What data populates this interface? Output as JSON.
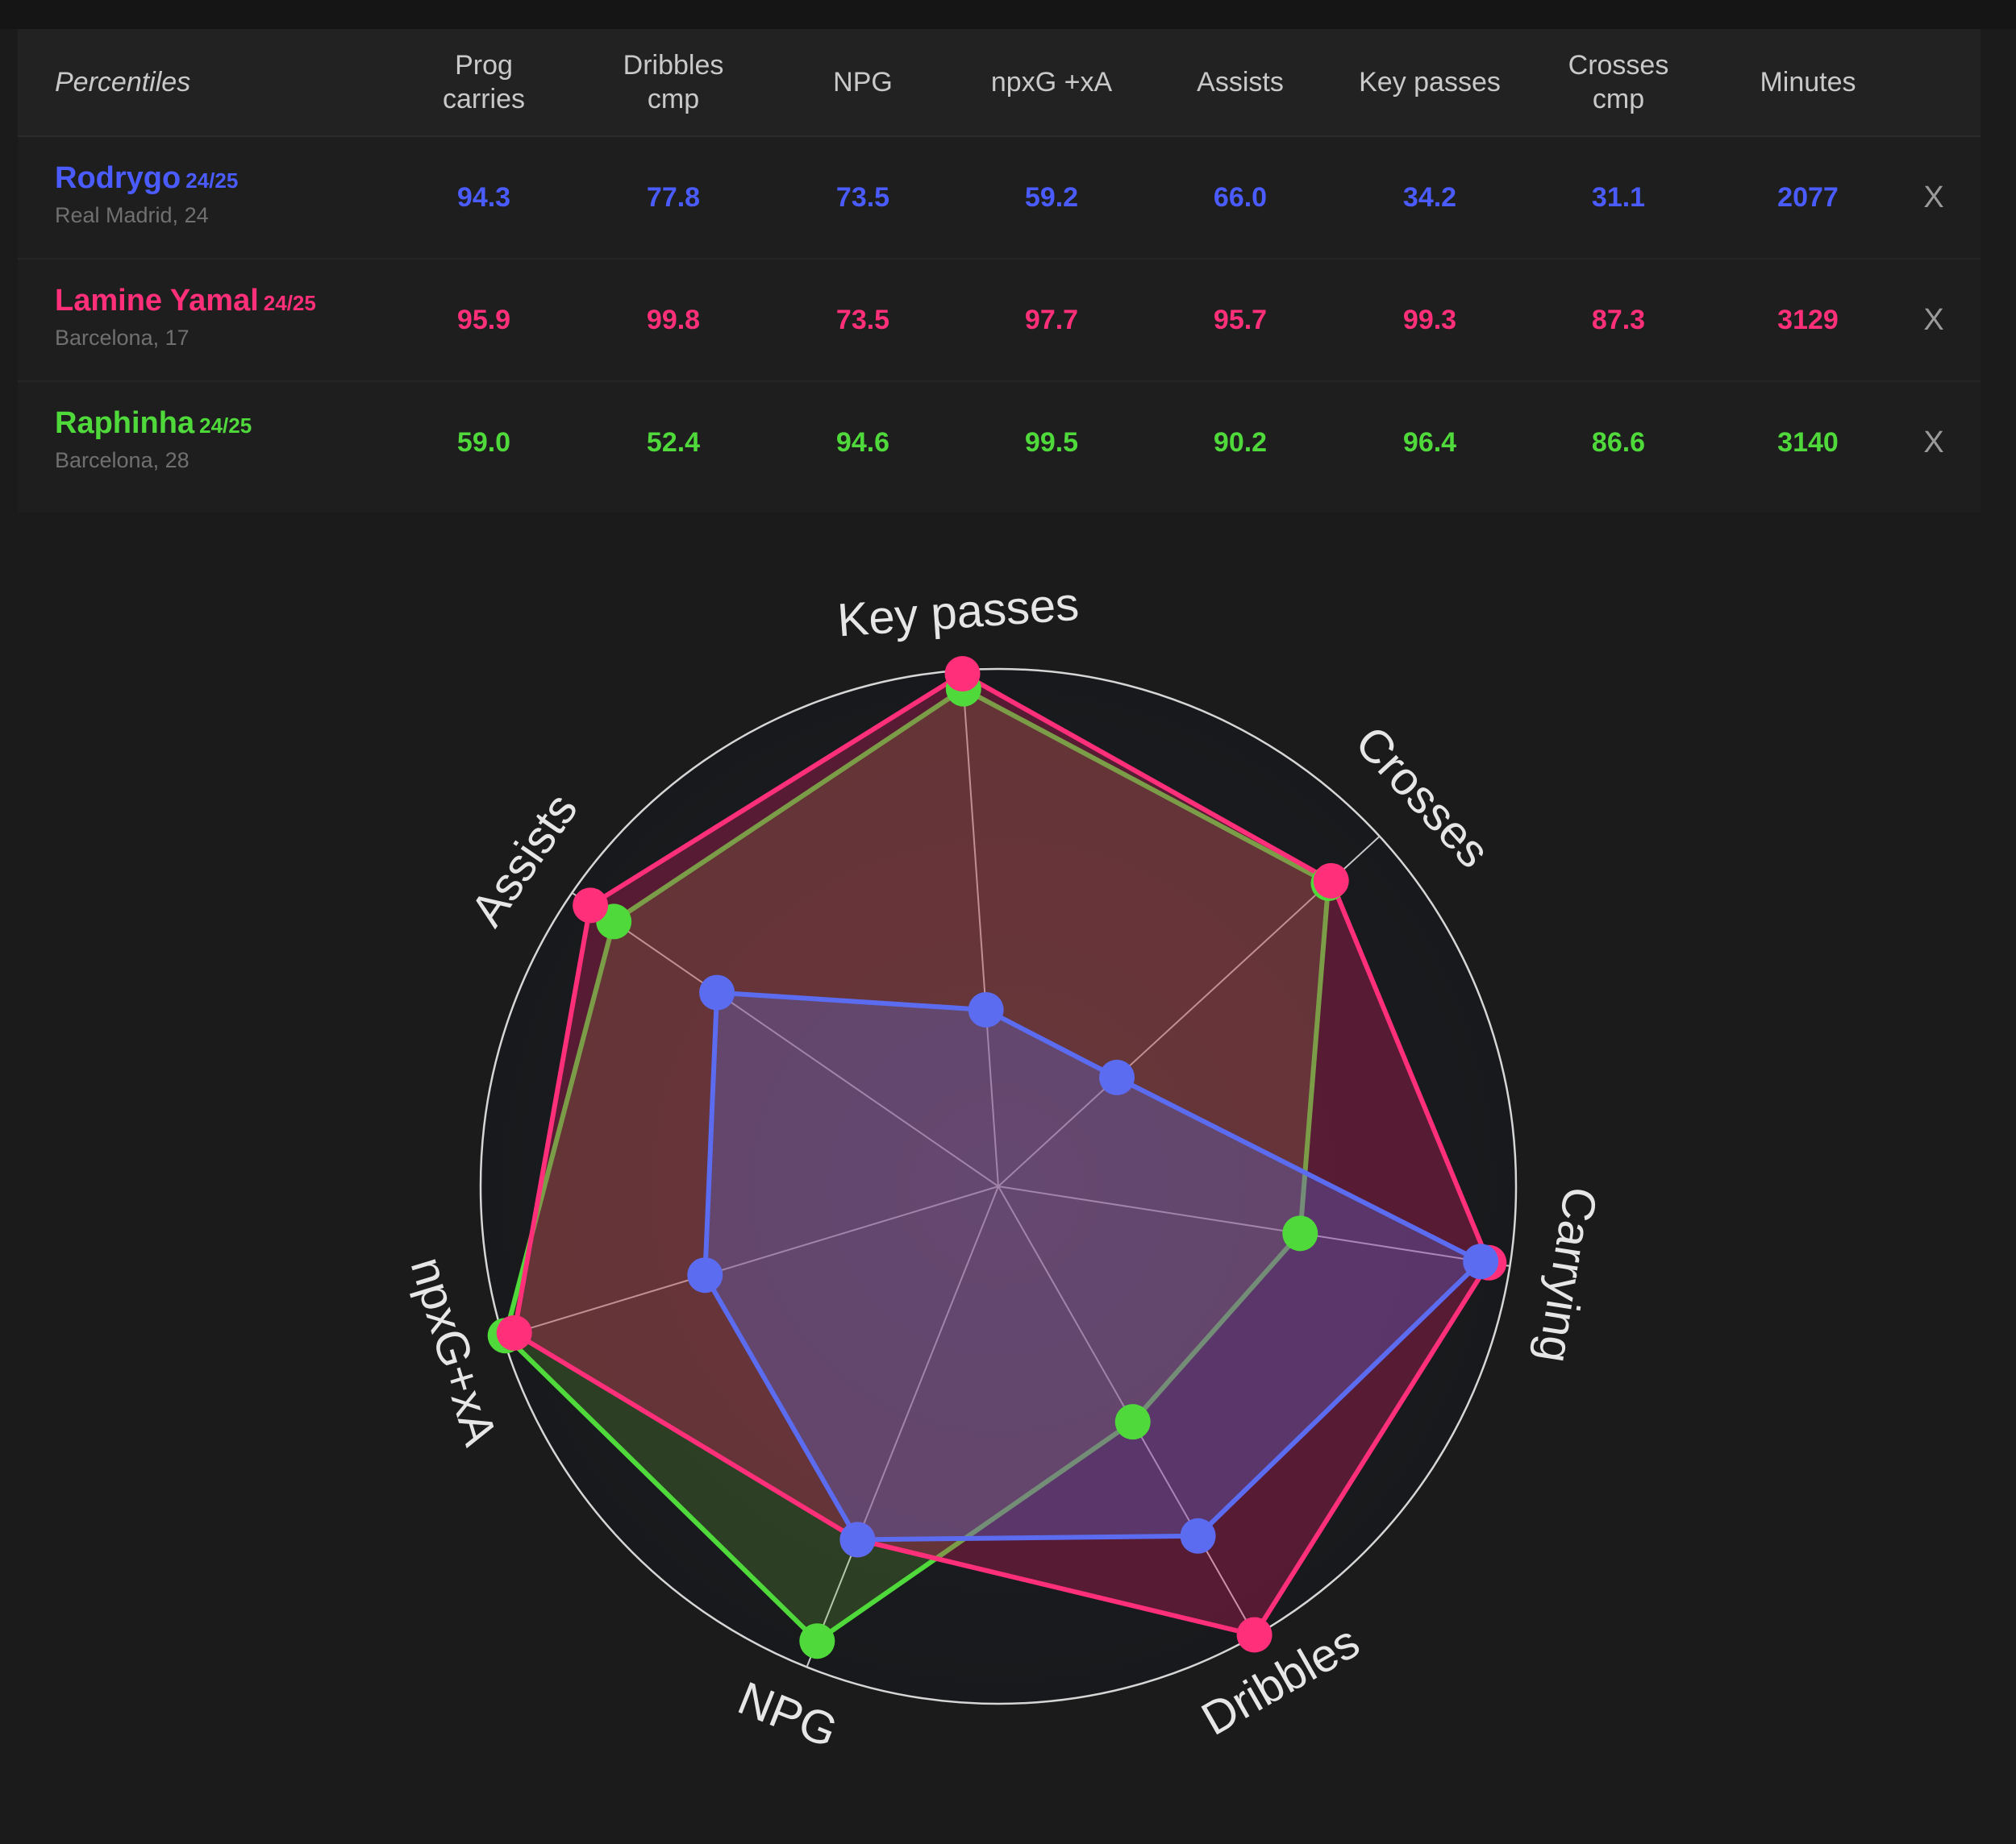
{
  "table": {
    "header_label": "Percentiles",
    "columns": [
      "Prog\ncarries",
      "Dribbles\ncmp",
      "NPG",
      "npxG +xA",
      "Assists",
      "Key passes",
      "Crosses\ncmp",
      "Minutes"
    ],
    "players": [
      {
        "name": "Rodrygo",
        "season": "24/25",
        "sub": "Real Madrid, 24",
        "color": "#4a5cff",
        "values": [
          "94.3",
          "77.8",
          "73.5",
          "59.2",
          "66.0",
          "34.2",
          "31.1",
          "2077"
        ],
        "remove": "X"
      },
      {
        "name": "Lamine Yamal",
        "season": "24/25",
        "sub": "Barcelona, 17",
        "color": "#ff2f7a",
        "values": [
          "95.9",
          "99.8",
          "73.5",
          "97.7",
          "95.7",
          "99.3",
          "87.3",
          "3129"
        ],
        "remove": "X"
      },
      {
        "name": "Raphinha",
        "season": "24/25",
        "sub": "Barcelona, 28",
        "color": "#4fd93b",
        "values": [
          "59.0",
          "52.4",
          "94.6",
          "99.5",
          "90.2",
          "96.4",
          "86.6",
          "3140"
        ],
        "remove": "X"
      }
    ]
  },
  "chart_data": {
    "type": "radar",
    "axes": [
      "Key passes",
      "Crosses",
      "Carrying",
      "Dribbles",
      "NPG",
      "npxG+xA",
      "Assists"
    ],
    "range": [
      0,
      100
    ],
    "grid": false,
    "series": [
      {
        "name": "Rodrygo",
        "color": "#5b6cf0",
        "fill": "rgba(95,110,220,0.32)",
        "values": [
          34.2,
          31.1,
          94.3,
          77.8,
          73.5,
          59.2,
          66.0
        ]
      },
      {
        "name": "Lamine Yamal",
        "color": "#ff2f7a",
        "fill": "rgba(220,30,100,0.32)",
        "values": [
          99.3,
          87.3,
          95.9,
          99.8,
          73.5,
          97.7,
          95.7
        ]
      },
      {
        "name": "Raphinha",
        "color": "#4fd93b",
        "fill": "rgba(120,190,60,0.22)",
        "values": [
          96.4,
          86.6,
          59.0,
          52.4,
          94.6,
          99.5,
          90.2
        ]
      }
    ]
  }
}
